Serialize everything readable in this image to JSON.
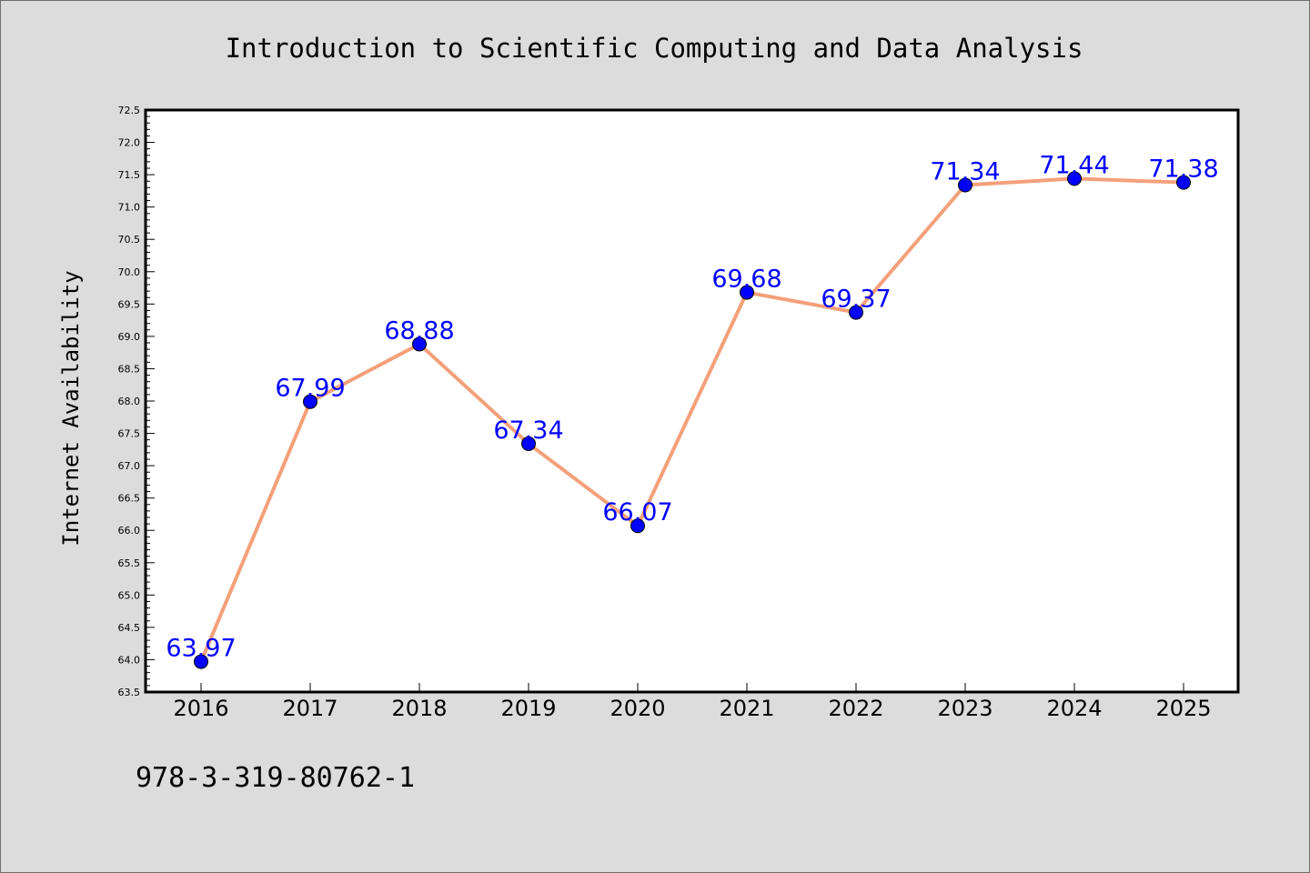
{
  "chart_data": {
    "type": "line",
    "title": "Introduction to Scientific Computing and Data Analysis",
    "xlabel": "",
    "ylabel": "Internet Availability",
    "categories": [
      "2016",
      "2017",
      "2018",
      "2019",
      "2020",
      "2021",
      "2022",
      "2023",
      "2024",
      "2025"
    ],
    "series": [
      {
        "values": [
          63.97,
          67.99,
          68.88,
          67.34,
          66.07,
          69.68,
          69.37,
          71.34,
          71.44,
          71.38
        ],
        "labels": [
          "63.97",
          "67.99",
          "68.88",
          "67.34",
          "66.07",
          "69.68",
          "69.37",
          "71.34",
          "71.44",
          "71.38"
        ],
        "line_color": "#f4a07a",
        "marker_color": "#0000ff"
      }
    ],
    "ylim": [
      63.5,
      72.5
    ],
    "yticks": [
      "63.5",
      "64.0",
      "64.5",
      "65.0",
      "65.5",
      "66.0",
      "66.5",
      "67.0",
      "67.5",
      "68.0",
      "68.5",
      "69.0",
      "69.5",
      "70.0",
      "70.5",
      "71.0",
      "71.5",
      "72.0",
      "72.5"
    ],
    "y_minor_step": 0.1,
    "grid": false,
    "legend": "none"
  },
  "footer_code": "978-3-319-80762-1",
  "colors": {
    "background": "#dcdcdc",
    "plot_background": "#ffffff",
    "axis": "#000000",
    "label_text": "#0000ff"
  }
}
